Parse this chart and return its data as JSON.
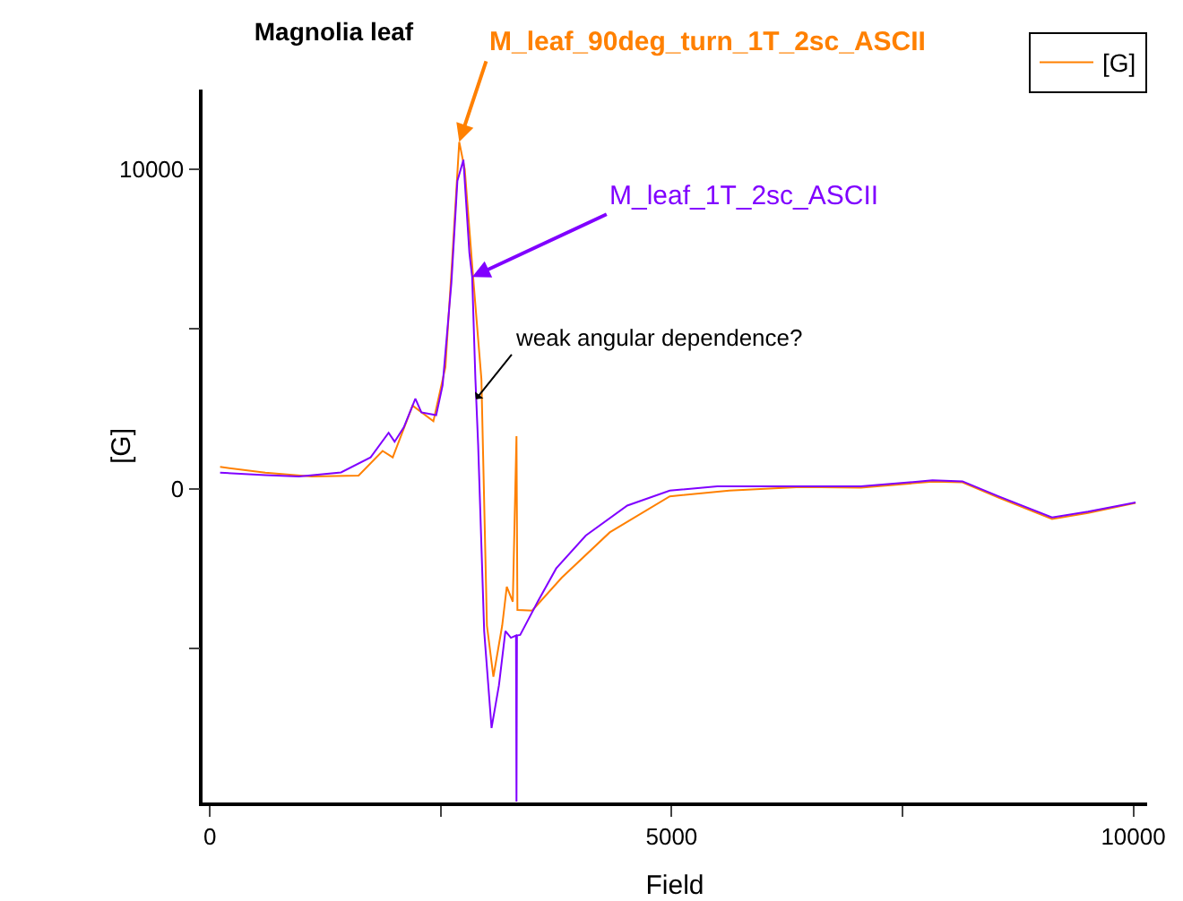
{
  "chart_data": {
    "type": "line",
    "title": "Magnolia leaf",
    "xlabel": "Field",
    "ylabel": "[G]",
    "legend": "top right",
    "grid": false,
    "xlim": [
      -80,
      10150
    ],
    "xticks": [
      0,
      {
        "value": 2500,
        "label": null
      },
      5000,
      {
        "value": 7500,
        "label": null
      },
      10000
    ],
    "ylim": [
      -9830,
      12500
    ],
    "yticks": [
      {
        "value": -5000,
        "label": null
      },
      0,
      {
        "value": 5000,
        "label": null
      },
      10000
    ],
    "series": [
      {
        "name": "[G]",
        "color": "#ff8000",
        "x": [
          110,
          600,
          1100,
          1610,
          1870,
          1980,
          2195,
          2420,
          2550,
          2620,
          2700,
          2760,
          2840,
          2940,
          3000,
          3070,
          3165,
          3215,
          3280,
          3320,
          3330,
          3490,
          3810,
          4330,
          4980,
          5625,
          6400,
          7050,
          7825,
          8150,
          8540,
          9120,
          9510,
          10025
        ],
        "values": [
          680,
          500,
          380,
          410,
          1180,
          980,
          2600,
          2110,
          3800,
          7000,
          10860,
          10000,
          7000,
          3430,
          -4290,
          -5890,
          -4290,
          -3070,
          -3540,
          1640,
          -3800,
          -3820,
          -2790,
          -1370,
          -240,
          -60,
          50,
          30,
          220,
          200,
          -280,
          -950,
          -760,
          -450
        ]
      },
      {
        "color": "#8000ff",
        "x": [
          110,
          600,
          965,
          1420,
          1740,
          1935,
          2000,
          2100,
          2225,
          2290,
          2450,
          2520,
          2615,
          2680,
          2745,
          2810,
          2840,
          2875,
          2905,
          2970,
          3050,
          3130,
          3200,
          3260,
          3315,
          3320,
          3325,
          3360,
          3550,
          3750,
          4070,
          4520,
          4980,
          5495,
          5750,
          6400,
          7050,
          7825,
          8150,
          8540,
          9120,
          9510,
          10025
        ],
        "values": [
          500,
          420,
          380,
          510,
          980,
          1750,
          1470,
          1920,
          2820,
          2390,
          2300,
          3240,
          6440,
          9640,
          10300,
          7380,
          6630,
          3430,
          1360,
          -4460,
          -7500,
          -6160,
          -4460,
          -4670,
          -4600,
          -9800,
          -4600,
          -4580,
          -3540,
          -2500,
          -1470,
          -530,
          -60,
          70,
          70,
          70,
          70,
          260,
          230,
          -240,
          -900,
          -720,
          -430
        ]
      }
    ],
    "annotations": [
      {
        "text": "M_leaf_90deg_turn_1T_2sc_ASCII",
        "x": 2700,
        "y": 10860
      },
      {
        "text": "M_leaf_1T_2sc_ASCII",
        "x": 2840,
        "y": 6630
      },
      {
        "text": "weak angular dependence?",
        "x": 2880,
        "y": 2800
      }
    ]
  }
}
